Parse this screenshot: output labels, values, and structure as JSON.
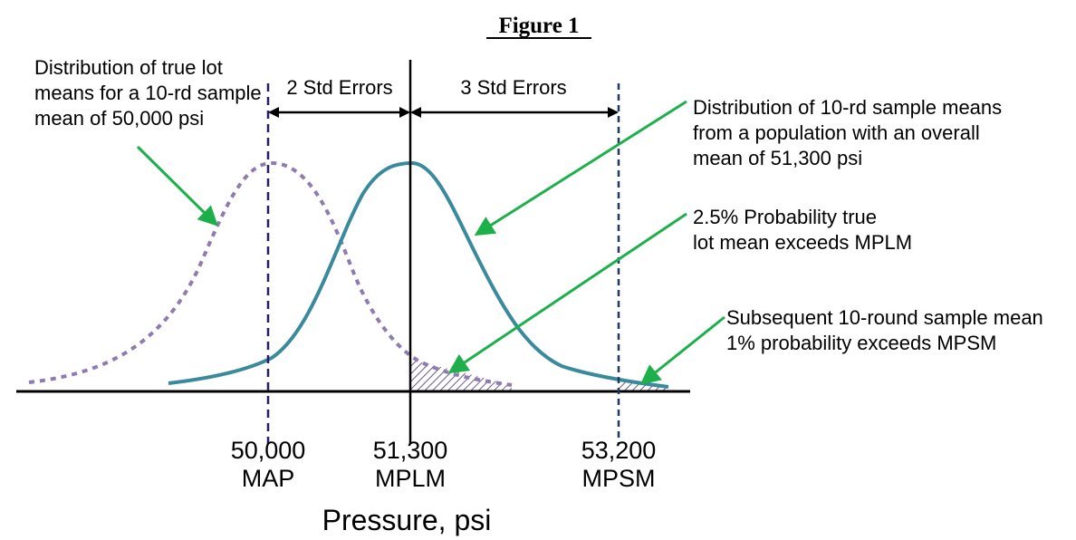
{
  "figure": {
    "title": "Figure 1",
    "axis_title": "Pressure, psi",
    "ticks": [
      {
        "value": "50,000",
        "name": "MAP"
      },
      {
        "value": "51,300",
        "name": "MPLM"
      },
      {
        "value": "53,200",
        "name": "MPSM"
      }
    ],
    "spans": {
      "left": "2 Std Errors",
      "right": "3 Std Errors"
    },
    "annotations": {
      "true_lot": [
        "Distribution of true lot",
        "means for a 10-rd sample",
        "mean of 50,000 psi"
      ],
      "sample_means": [
        "Distribution of 10-rd sample means",
        "from a population with an overall",
        "mean of 51,300 psi"
      ],
      "prob_25": [
        "2.5% Probability true",
        "lot mean exceeds MPLM"
      ],
      "prob_1": [
        "Subsequent 10-round sample mean",
        "1% probability exceeds MPSM"
      ]
    },
    "colors": {
      "sample_curve": "#3a8a9e",
      "true_lot_curve": "#8f7bb0",
      "arrow": "#1db04a",
      "map_line": "#2a1a6b",
      "mpsm_line": "#1f3864",
      "hatch": "#6a5a8a"
    }
  }
}
